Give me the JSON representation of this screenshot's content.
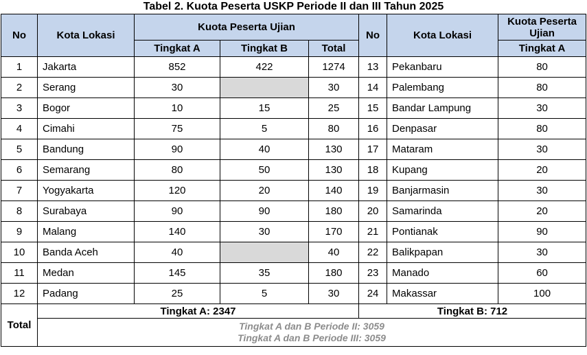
{
  "title": "Tabel 2. Kuota Peserta USKP Periode II dan III Tahun 2025",
  "headers": {
    "no": "No",
    "kota": "Kota Lokasi",
    "kuota_group": "Kuota Peserta Ujian",
    "tingkat_a": "Tingkat A",
    "tingkat_b": "Tingkat B",
    "total": "Total",
    "no_right": "No",
    "kota_right": "Kota Lokasi",
    "kuota_right": "Kuota Peserta Ujian",
    "tingkat_a_right": "Tingkat A"
  },
  "left_rows": [
    {
      "no": "1",
      "kota": "Jakarta",
      "a": "852",
      "b": "422",
      "total": "1274"
    },
    {
      "no": "2",
      "kota": "Serang",
      "a": "30",
      "b": "",
      "total": "30"
    },
    {
      "no": "3",
      "kota": "Bogor",
      "a": "10",
      "b": "15",
      "total": "25"
    },
    {
      "no": "4",
      "kota": "Cimahi",
      "a": "75",
      "b": "5",
      "total": "80"
    },
    {
      "no": "5",
      "kota": "Bandung",
      "a": "90",
      "b": "40",
      "total": "130"
    },
    {
      "no": "6",
      "kota": "Semarang",
      "a": "80",
      "b": "50",
      "total": "130"
    },
    {
      "no": "7",
      "kota": "Yogyakarta",
      "a": "120",
      "b": "20",
      "total": "140"
    },
    {
      "no": "8",
      "kota": "Surabaya",
      "a": "90",
      "b": "90",
      "total": "180"
    },
    {
      "no": "9",
      "kota": "Malang",
      "a": "140",
      "b": "30",
      "total": "170"
    },
    {
      "no": "10",
      "kota": "Banda Aceh",
      "a": "40",
      "b": "",
      "total": "40"
    },
    {
      "no": "11",
      "kota": "Medan",
      "a": "145",
      "b": "35",
      "total": "180"
    },
    {
      "no": "12",
      "kota": "Padang",
      "a": "25",
      "b": "5",
      "total": "30"
    }
  ],
  "right_rows": [
    {
      "no": "13",
      "kota": "Pekanbaru",
      "a": "80"
    },
    {
      "no": "14",
      "kota": "Palembang",
      "a": "80"
    },
    {
      "no": "15",
      "kota": "Bandar Lampung",
      "a": "30"
    },
    {
      "no": "16",
      "kota": "Denpasar",
      "a": "80"
    },
    {
      "no": "17",
      "kota": "Mataram",
      "a": "30"
    },
    {
      "no": "18",
      "kota": "Kupang",
      "a": "20"
    },
    {
      "no": "19",
      "kota": "Banjarmasin",
      "a": "30"
    },
    {
      "no": "20",
      "kota": "Samarinda",
      "a": "20"
    },
    {
      "no": "21",
      "kota": "Pontianak",
      "a": "90"
    },
    {
      "no": "22",
      "kota": "Balikpapan",
      "a": "30"
    },
    {
      "no": "23",
      "kota": "Manado",
      "a": "60"
    },
    {
      "no": "24",
      "kota": "Makassar",
      "a": "100"
    }
  ],
  "footer": {
    "total_label": "Total",
    "tingkat_a_total": "Tingkat A: 2347",
    "tingkat_b_total": "Tingkat B: 712",
    "periode_ii": "Tingkat A dan B Periode II: 3059",
    "periode_iii": "Tingkat A dan B Periode III: 3059"
  },
  "colors": {
    "header_bg": "#c5d5ec",
    "empty_cell": "#d9d9d9",
    "footer_text": "#8c8c8c"
  }
}
